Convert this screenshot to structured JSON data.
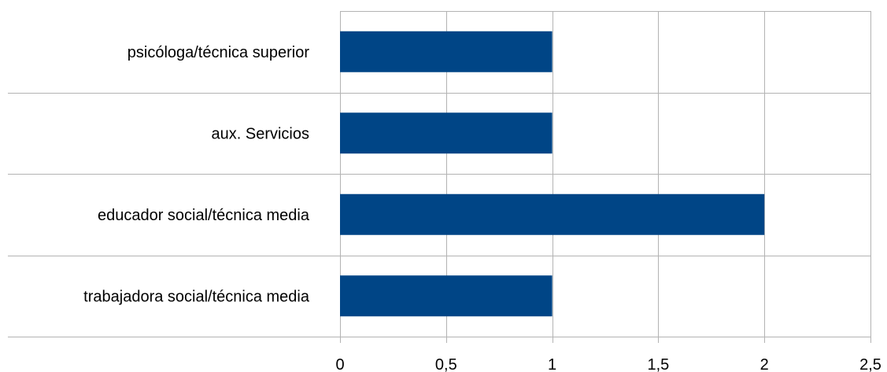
{
  "chart_data": {
    "type": "bar",
    "orientation": "horizontal",
    "title": "",
    "xlabel": "",
    "ylabel": "",
    "categories": [
      "psicóloga/técnica superior",
      "aux. Servicios",
      "educador social/técnica media",
      "trabajadora social/técnica media"
    ],
    "values": [
      1,
      1,
      2,
      1
    ],
    "xlim": [
      0,
      2.5
    ],
    "ticks": [
      0,
      0.5,
      1,
      1.5,
      2,
      2.5
    ],
    "tick_labels": [
      "0",
      "0,5",
      "1",
      "1,5",
      "2",
      "2,5"
    ],
    "grid": true,
    "legend": "none",
    "colors": {
      "bar": "#004586",
      "grid": "#b3b3b3",
      "axis": "#b3b3b3"
    }
  }
}
